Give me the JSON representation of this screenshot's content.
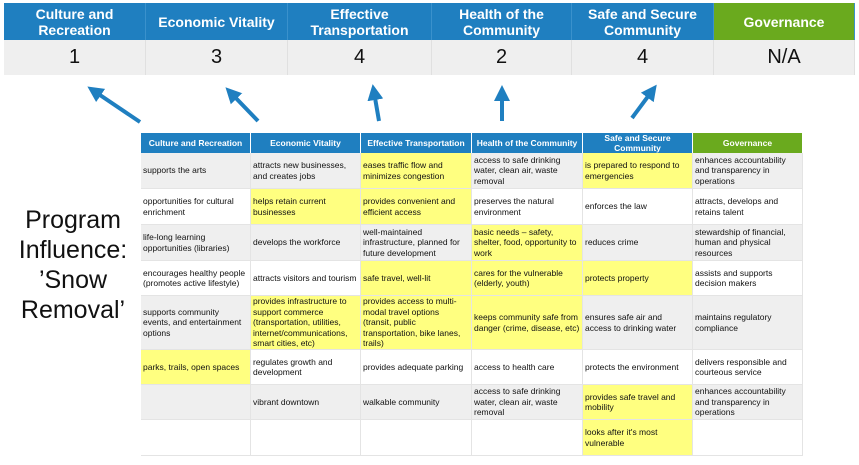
{
  "summary": {
    "columns": [
      "Culture and Recreation",
      "Economic Vitality",
      "Effective Transportation",
      "Health of the Community",
      "Safe and Secure Community",
      "Governance"
    ],
    "scores": [
      "1",
      "3",
      "4",
      "2",
      "4",
      "N/A"
    ]
  },
  "title": "Program Influence: ’Snow Removal’",
  "colors": {
    "header_blue": "#1f7fc0",
    "governance_green": "#6aaa1e",
    "highlight": "#ffff80",
    "arrow": "#1f7fc0"
  },
  "table": {
    "headers": [
      "Culture and Recreation",
      "Economic Vitality",
      "Effective Transportation",
      "Health of the Community",
      "Safe and Secure Community",
      "Governance"
    ],
    "rows": [
      [
        {
          "t": "supports the arts"
        },
        {
          "t": "attracts new businesses, and creates jobs"
        },
        {
          "t": "eases traffic flow and minimizes congestion",
          "hl": true
        },
        {
          "t": "access to safe drinking water, clean air, waste removal"
        },
        {
          "t": "is prepared to respond to emergencies",
          "hl": true
        },
        {
          "t": "enhances accountability and transparency in operations"
        }
      ],
      [
        {
          "t": "opportunities for cultural enrichment"
        },
        {
          "t": "helps retain current businesses",
          "hl": true
        },
        {
          "t": "provides convenient and efficient access",
          "hl": true
        },
        {
          "t": "preserves the natural environment"
        },
        {
          "t": "enforces the law"
        },
        {
          "t": "attracts, develops and retains talent"
        }
      ],
      [
        {
          "t": "life-long learning opportunities (libraries)"
        },
        {
          "t": "develops the workforce"
        },
        {
          "t": "well-maintained infrastructure, planned for future development"
        },
        {
          "t": "basic needs – safety, shelter, food, opportunity to work",
          "hl": true
        },
        {
          "t": "reduces crime"
        },
        {
          "t": "stewardship of financial, human and physical resources"
        }
      ],
      [
        {
          "t": "encourages healthy people (promotes active lifestyle)"
        },
        {
          "t": "attracts visitors and tourism"
        },
        {
          "t": "safe travel, well-lit",
          "hl": true
        },
        {
          "t": "cares for the vulnerable (elderly, youth)",
          "hl": true
        },
        {
          "t": "protects property",
          "hl": true
        },
        {
          "t": "assists and supports decision makers"
        }
      ],
      [
        {
          "t": "supports community events, and entertainment options"
        },
        {
          "t": "provides infrastructure to support commerce (transportation, utilities, internet/communications, smart cities, etc)",
          "hl": true
        },
        {
          "t": "provides access to multi-modal travel options (transit, public transportation, bike lanes, trails)",
          "hl": true
        },
        {
          "t": "keeps community safe from danger (crime, disease, etc)",
          "hl": true
        },
        {
          "t": "ensures safe air and access to drinking water"
        },
        {
          "t": "maintains regulatory compliance"
        }
      ],
      [
        {
          "t": "parks, trails, open spaces",
          "hl": true
        },
        {
          "t": "regulates growth and development"
        },
        {
          "t": "provides adequate parking"
        },
        {
          "t": "access to health care"
        },
        {
          "t": "protects the environment"
        },
        {
          "t": "delivers responsible and courteous service"
        }
      ],
      [
        {
          "t": ""
        },
        {
          "t": "vibrant downtown"
        },
        {
          "t": "walkable community"
        },
        {
          "t": "access to safe drinking water, clean air, waste removal"
        },
        {
          "t": "provides safe travel and mobility",
          "hl": true
        },
        {
          "t": "enhances accountability and transparency in operations"
        }
      ],
      [
        {
          "t": ""
        },
        {
          "t": ""
        },
        {
          "t": ""
        },
        {
          "t": ""
        },
        {
          "t": "looks after it's most vulnerable",
          "hl": true
        },
        {
          "t": ""
        }
      ]
    ]
  }
}
